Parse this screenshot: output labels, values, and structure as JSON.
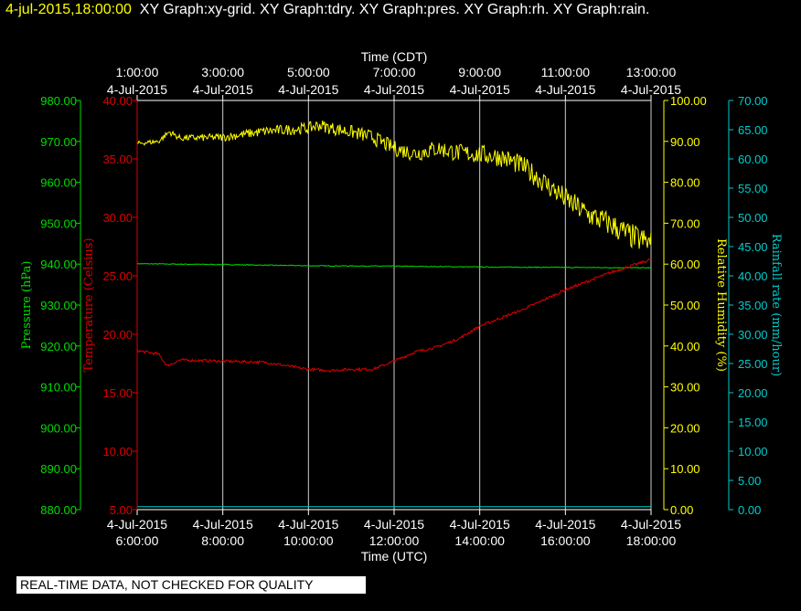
{
  "header": {
    "timestamp": "4-jul-2015,18:00:00",
    "titles": "XY Graph:xy-grid.  XY Graph:tdry.  XY Graph:pres.  XY Graph:rh.  XY Graph:rain."
  },
  "footer": {
    "notice": "REAL-TIME DATA, NOT CHECKED FOR QUALITY"
  },
  "colors": {
    "pressure": "#00dd00",
    "temperature": "#dd0000",
    "rh": "#ffff00",
    "rain": "#00cccc",
    "grid": "#cccccc",
    "background": "#000000",
    "text": "#ffffff"
  },
  "chart_data": {
    "type": "line",
    "x_start_hour_utc": 6,
    "x_end_hour_utc": 18,
    "top_axis": {
      "title": "Time (CDT)",
      "ticks": [
        {
          "time": "1:00:00",
          "date": "4-Jul-2015"
        },
        {
          "time": "3:00:00",
          "date": "4-Jul-2015"
        },
        {
          "time": "5:00:00",
          "date": "4-Jul-2015"
        },
        {
          "time": "7:00:00",
          "date": "4-Jul-2015"
        },
        {
          "time": "9:00:00",
          "date": "4-Jul-2015"
        },
        {
          "time": "11:00:00",
          "date": "4-Jul-2015"
        },
        {
          "time": "13:00:00",
          "date": "4-Jul-2015"
        }
      ]
    },
    "bottom_axis": {
      "title": "Time (UTC)",
      "ticks": [
        {
          "date": "4-Jul-2015",
          "time": "6:00:00"
        },
        {
          "date": "4-Jul-2015",
          "time": "8:00:00"
        },
        {
          "date": "4-Jul-2015",
          "time": "10:00:00"
        },
        {
          "date": "4-Jul-2015",
          "time": "12:00:00"
        },
        {
          "date": "4-Jul-2015",
          "time": "14:00:00"
        },
        {
          "date": "4-Jul-2015",
          "time": "16:00:00"
        },
        {
          "date": "4-Jul-2015",
          "time": "18:00:00"
        }
      ]
    },
    "axes": {
      "pressure": {
        "label": "Pressure (hPa)",
        "range": [
          880,
          980
        ],
        "ticks": [
          "880.00",
          "890.00",
          "900.00",
          "910.00",
          "920.00",
          "930.00",
          "940.00",
          "950.00",
          "960.00",
          "970.00",
          "980.00"
        ]
      },
      "temperature": {
        "label": "Temperature (Celsius)",
        "range": [
          5,
          40
        ],
        "ticks": [
          "5.00",
          "10.00",
          "15.00",
          "20.00",
          "25.00",
          "30.00",
          "35.00",
          "40.00"
        ]
      },
      "rh": {
        "label": "Relative Humidity (%)",
        "range": [
          0,
          100
        ],
        "ticks": [
          "0.00",
          "10.00",
          "20.00",
          "30.00",
          "40.00",
          "50.00",
          "60.00",
          "70.00",
          "80.00",
          "90.00",
          "100.00"
        ]
      },
      "rain": {
        "label": "Rainfall rate (mm/hour)",
        "range": [
          0,
          70
        ],
        "ticks": [
          "0.00",
          "5.00",
          "10.00",
          "15.00",
          "20.00",
          "25.00",
          "30.00",
          "35.00",
          "40.00",
          "45.00",
          "50.00",
          "55.00",
          "60.00",
          "65.00",
          "70.00"
        ]
      }
    },
    "series": [
      {
        "name": "Pressure",
        "axis": "pressure",
        "x": [
          6,
          8,
          10,
          12,
          14,
          16,
          18
        ],
        "y": [
          940.1,
          939.9,
          939.6,
          939.5,
          939.3,
          939.2,
          939.1
        ]
      },
      {
        "name": "Temperature",
        "axis": "temperature",
        "x": [
          6,
          6.5,
          6.7,
          7,
          8,
          9,
          10,
          10.5,
          11,
          11.5,
          12,
          12.5,
          13,
          13.5,
          14,
          15,
          16,
          17,
          18
        ],
        "y": [
          18.6,
          18.3,
          17.3,
          17.8,
          17.7,
          17.6,
          17.0,
          16.9,
          17.0,
          17.0,
          17.7,
          18.5,
          18.9,
          19.6,
          20.7,
          22.1,
          23.8,
          25.2,
          26.4
        ]
      },
      {
        "name": "Relative Humidity",
        "axis": "rh",
        "x": [
          6,
          6.5,
          6.75,
          7,
          8,
          9,
          10,
          10.25,
          10.5,
          11,
          11.5,
          12,
          12.5,
          13,
          13.5,
          14,
          14.5,
          15,
          15.5,
          16,
          16.5,
          17,
          17.5,
          18
        ],
        "y": [
          89.5,
          90.0,
          92.3,
          90.8,
          91.0,
          92.5,
          93.2,
          94.0,
          93.3,
          92.3,
          91.0,
          88.3,
          87.0,
          88.3,
          87.2,
          86.8,
          86.2,
          84.0,
          80.0,
          76.0,
          72.3,
          70.0,
          67.0,
          65.0
        ]
      },
      {
        "name": "Rainfall rate",
        "axis": "rain",
        "x": [
          6,
          18
        ],
        "y": [
          0.5,
          0.5
        ]
      }
    ]
  }
}
